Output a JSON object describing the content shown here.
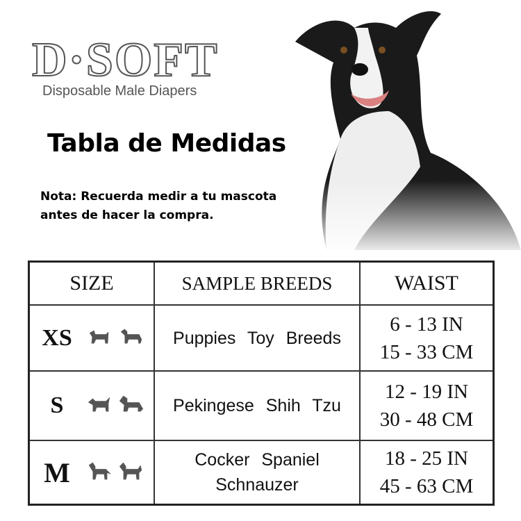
{
  "logo": {
    "brand": "D·SOFT",
    "tagline": "Disposable Male Diapers"
  },
  "title": "Tabla de Medidas",
  "note": {
    "line1": "Nota: Recuerda medir a tu mascota",
    "line2": "antes de hacer la compra."
  },
  "table": {
    "headers": [
      "SIZE",
      "SAMPLE BREEDS",
      "WAIST"
    ],
    "rows": [
      {
        "size": "XS",
        "breeds": [
          "Puppies Toy Breeds"
        ],
        "waist_in": "6 - 13 IN",
        "waist_cm": "15 - 33 CM",
        "icons": [
          "dog-silhouette-icon",
          "dog-silhouette-icon"
        ]
      },
      {
        "size": "S",
        "breeds": [
          "Pekingese Shih Tzu"
        ],
        "waist_in": "12 - 19 IN",
        "waist_cm": "30 - 48 CM",
        "icons": [
          "dog-silhouette-icon",
          "dog-silhouette-icon"
        ]
      },
      {
        "size": "M",
        "breeds": [
          "Cocker Spaniel",
          "Schnauzer"
        ],
        "waist_in": "18 - 25 IN",
        "waist_cm": "45 - 63 CM",
        "icons": [
          "dog-silhouette-icon",
          "dog-silhouette-icon"
        ]
      }
    ]
  },
  "colors": {
    "logo_gray": "#555555",
    "icon_gray": "#555555",
    "border": "#333333"
  }
}
